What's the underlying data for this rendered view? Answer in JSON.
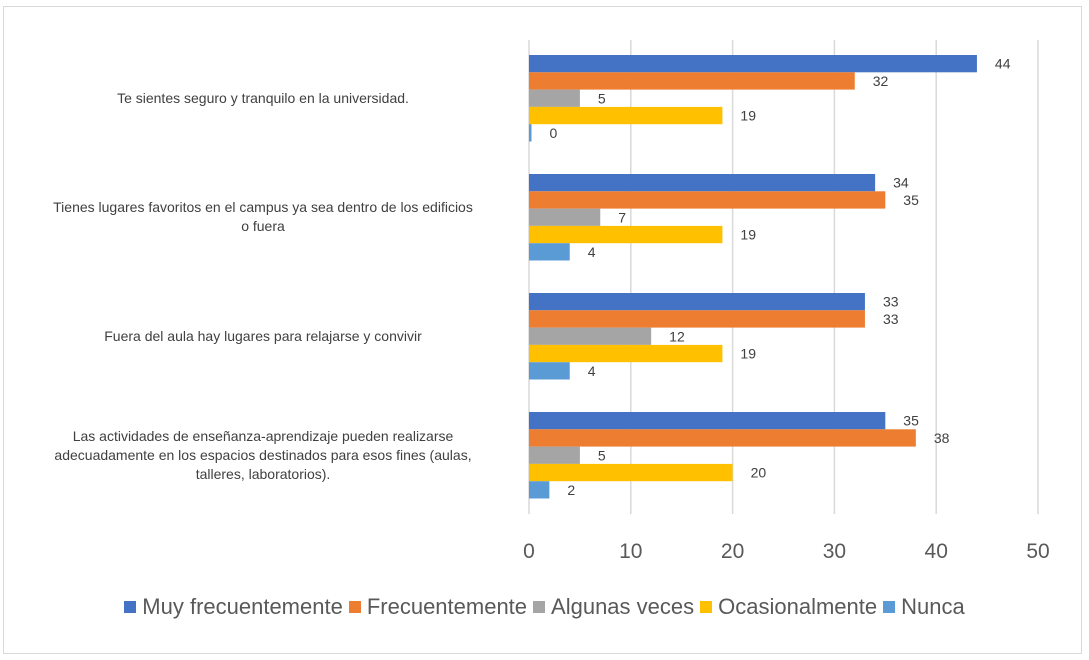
{
  "chart_data": {
    "type": "bar",
    "orientation": "horizontal",
    "title": "",
    "xlabel": "",
    "ylabel": "",
    "xlim": [
      0,
      50
    ],
    "xticks": [
      "0",
      "10",
      "20",
      "30",
      "40",
      "50"
    ],
    "grid": true,
    "legend_position": "bottom",
    "categories": [
      "Te sientes seguro y tranquilo en la universidad.",
      "Tienes lugares favoritos en el campus ya sea dentro de los edificios o fuera",
      "Fuera del aula hay lugares para relajarse y convivir",
      "Las actividades de enseñanza-aprendizaje pueden realizarse adecuadamente en los espacios destinados para esos fines (aulas, talleres, laboratorios)."
    ],
    "category_lines": [
      [
        "Te sientes seguro y tranquilo en la universidad."
      ],
      [
        "Tienes lugares favoritos en el campus ya sea dentro de los edificios",
        "o fuera"
      ],
      [
        "Fuera del aula hay lugares para relajarse y convivir"
      ],
      [
        "Las actividades de enseñanza-aprendizaje pueden realizarse",
        "adecuadamente en los espacios destinados para esos fines (aulas,",
        "talleres, laboratorios)."
      ]
    ],
    "series": [
      {
        "name": "Muy frecuentemente",
        "color": "#4472C4",
        "values": [
          44,
          34,
          33,
          35
        ]
      },
      {
        "name": "Frecuentemente",
        "color": "#ED7D31",
        "values": [
          32,
          35,
          33,
          38
        ]
      },
      {
        "name": "Algunas veces",
        "color": "#A5A5A5",
        "values": [
          5,
          7,
          12,
          5
        ]
      },
      {
        "name": "Ocasionalmente",
        "color": "#FFC000",
        "values": [
          19,
          19,
          19,
          20
        ]
      },
      {
        "name": "Nunca",
        "color": "#5B9BD5",
        "values": [
          0,
          4,
          4,
          2
        ]
      }
    ]
  }
}
